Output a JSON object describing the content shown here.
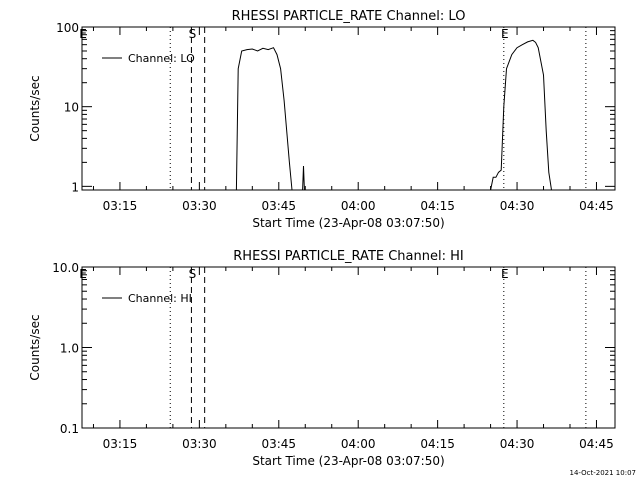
{
  "chart_data": [
    {
      "type": "line",
      "title": "RHESSI PARTICLE_RATE Channel: LO",
      "xlabel": "Start Time (23-Apr-08 03:07:50)",
      "ylabel": "Counts/sec",
      "y_scale": "log",
      "ylim": [
        0.9,
        100
      ],
      "xlim": [
        "03:07:50",
        "04:48:30"
      ],
      "x_ticks": [
        "03:15",
        "03:30",
        "03:45",
        "04:00",
        "04:15",
        "04:30",
        "04:45"
      ],
      "y_ticks": [
        "1",
        "10",
        "100"
      ],
      "legend": {
        "position": "top-left",
        "entries": [
          "Channel: LO"
        ]
      },
      "markers": [
        {
          "label": "E",
          "time": "03:07:50",
          "style": "dotted"
        },
        {
          "label": "",
          "time": "03:24:30",
          "style": "dotted"
        },
        {
          "label": "S",
          "time": "03:28:30",
          "style": "dashed"
        },
        {
          "label": "",
          "time": "03:31:00",
          "style": "dashed"
        },
        {
          "label": "E",
          "time": "04:27:30",
          "style": "dotted"
        },
        {
          "label": "",
          "time": "04:43:00",
          "style": "dotted"
        }
      ],
      "series": [
        {
          "name": "Channel: LO",
          "x": [
            "03:37:00",
            "03:37:20",
            "03:38:00",
            "03:39:00",
            "03:40:00",
            "03:41:00",
            "03:42:00",
            "03:43:00",
            "03:44:00",
            "03:44:40",
            "03:45:20",
            "03:46:00",
            "03:47:00",
            "03:47:30"
          ],
          "y": [
            0.9,
            30,
            50,
            52,
            53,
            50,
            54,
            52,
            55,
            45,
            30,
            12,
            2,
            0.9
          ]
        },
        {
          "name": "",
          "x": [
            "03:49:30",
            "03:49:40",
            "03:49:50"
          ],
          "y": [
            0.9,
            1.8,
            0.9
          ]
        },
        {
          "name": "",
          "x": [
            "04:25:00",
            "04:25:30",
            "04:26:00",
            "04:26:30",
            "04:27:00",
            "04:27:30",
            "04:28:00",
            "04:29:00",
            "04:30:00",
            "04:31:00",
            "04:32:00",
            "04:33:00",
            "04:33:30",
            "04:34:00",
            "04:35:00",
            "04:35:30",
            "04:36:00",
            "04:36:30"
          ],
          "y": [
            0.9,
            1.3,
            1.3,
            1.5,
            1.6,
            10,
            30,
            45,
            55,
            60,
            65,
            68,
            64,
            55,
            25,
            5,
            1.5,
            0.9
          ]
        }
      ]
    },
    {
      "type": "line",
      "title": "RHESSI PARTICLE_RATE Channel: HI",
      "xlabel": "Start Time (23-Apr-08 03:07:50)",
      "ylabel": "Counts/sec",
      "y_scale": "log",
      "ylim": [
        0.1,
        10
      ],
      "xlim": [
        "03:07:50",
        "04:48:30"
      ],
      "x_ticks": [
        "03:15",
        "03:30",
        "03:45",
        "04:00",
        "04:15",
        "04:30",
        "04:45"
      ],
      "y_ticks": [
        "0.1",
        "1.0",
        "10.0"
      ],
      "legend": {
        "position": "top-left",
        "entries": [
          "Channel: HI"
        ]
      },
      "markers": [
        {
          "label": "E",
          "time": "03:07:50",
          "style": "dotted"
        },
        {
          "label": "",
          "time": "03:24:30",
          "style": "dotted"
        },
        {
          "label": "S",
          "time": "03:28:30",
          "style": "dashed"
        },
        {
          "label": "",
          "time": "03:31:00",
          "style": "dashed"
        },
        {
          "label": "E",
          "time": "04:27:30",
          "style": "dotted"
        },
        {
          "label": "",
          "time": "04:43:00",
          "style": "dotted"
        }
      ],
      "series": []
    }
  ],
  "footer": {
    "timestamp": "14-Oct-2021 10:07"
  }
}
